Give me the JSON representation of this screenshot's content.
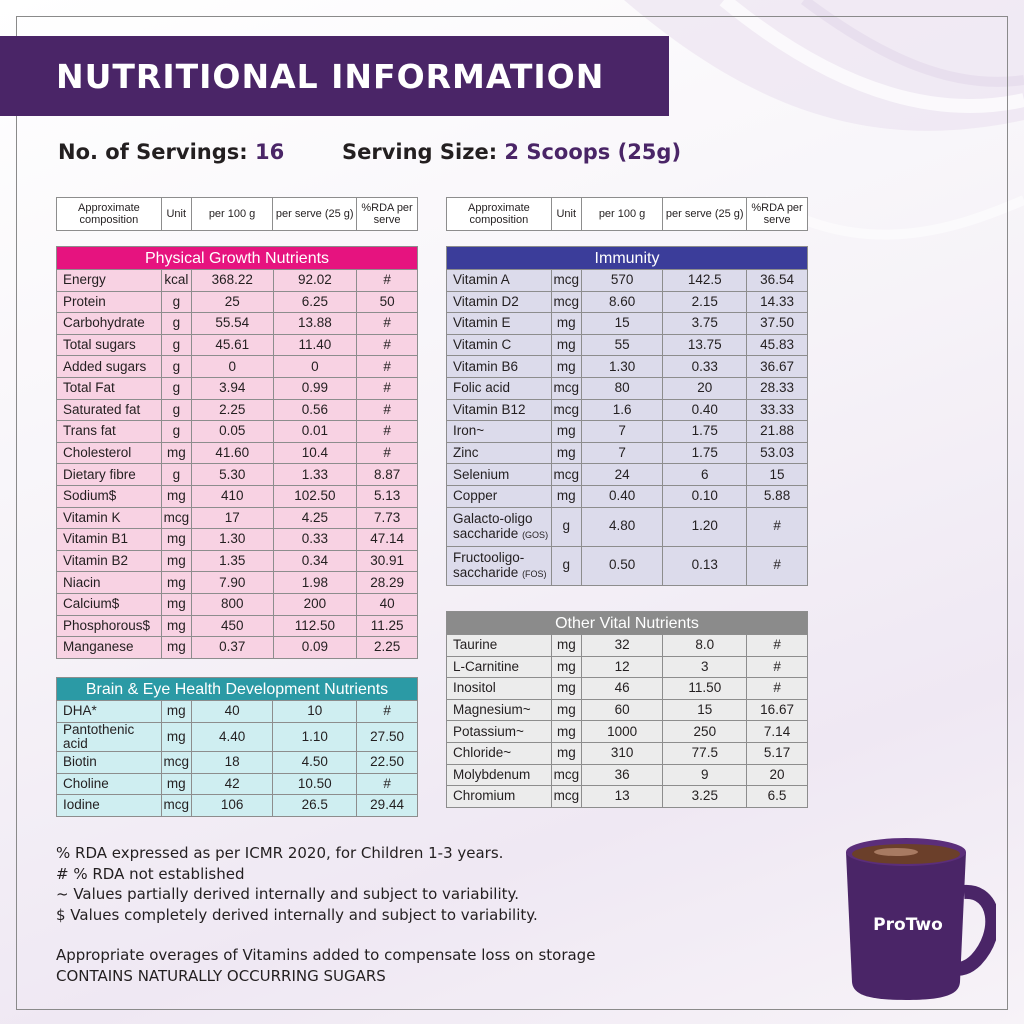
{
  "title": "NUTRITIONAL INFORMATION",
  "servings": {
    "label": "No. of Servings:",
    "value": "16"
  },
  "serving_size": {
    "label": "Serving Size:",
    "value": "2 Scoops (25g)"
  },
  "header": {
    "col1": "Approximate composition",
    "col2": "Unit",
    "col3": "per 100 g",
    "col4": "per serve (25 g)",
    "col5": "%RDA per serve"
  },
  "physical": {
    "title": "Physical Growth Nutrients",
    "rows": [
      [
        "Energy",
        "kcal",
        "368.22",
        "92.02",
        "#"
      ],
      [
        "Protein",
        "g",
        "25",
        "6.25",
        "50"
      ],
      [
        "Carbohydrate",
        "g",
        "55.54",
        "13.88",
        "#"
      ],
      [
        "Total sugars",
        "g",
        "45.61",
        "11.40",
        "#"
      ],
      [
        "Added sugars",
        "g",
        "0",
        "0",
        "#"
      ],
      [
        "Total Fat",
        "g",
        "3.94",
        "0.99",
        "#"
      ],
      [
        "Saturated fat",
        "g",
        "2.25",
        "0.56",
        "#"
      ],
      [
        "Trans fat",
        "g",
        "0.05",
        "0.01",
        "#"
      ],
      [
        "Cholesterol",
        "mg",
        "41.60",
        "10.4",
        "#"
      ],
      [
        "Dietary fibre",
        "g",
        "5.30",
        "1.33",
        "8.87"
      ],
      [
        "Sodium$",
        "mg",
        "410",
        "102.50",
        "5.13"
      ],
      [
        "Vitamin K",
        "mcg",
        "17",
        "4.25",
        "7.73"
      ],
      [
        "Vitamin B1",
        "mg",
        "1.30",
        "0.33",
        "47.14"
      ],
      [
        "Vitamin B2",
        "mg",
        "1.35",
        "0.34",
        "30.91"
      ],
      [
        "Niacin",
        "mg",
        "7.90",
        "1.98",
        "28.29"
      ],
      [
        "Calcium$",
        "mg",
        "800",
        "200",
        "40"
      ],
      [
        "Phosphorous$",
        "mg",
        "450",
        "112.50",
        "11.25"
      ],
      [
        "Manganese",
        "mg",
        "0.37",
        "0.09",
        "2.25"
      ]
    ]
  },
  "brain": {
    "title": "Brain & Eye Health Development Nutrients",
    "rows": [
      [
        "DHA*",
        "mg",
        "40",
        "10",
        "#"
      ],
      [
        "Pantothenic acid",
        "mg",
        "4.40",
        "1.10",
        "27.50"
      ],
      [
        "Biotin",
        "mcg",
        "18",
        "4.50",
        "22.50"
      ],
      [
        "Choline",
        "mg",
        "42",
        "10.50",
        "#"
      ],
      [
        "Iodine",
        "mcg",
        "106",
        "26.5",
        "29.44"
      ]
    ]
  },
  "immunity": {
    "title": "Immunity",
    "rows": [
      [
        "Vitamin A",
        "mcg",
        "570",
        "142.5",
        "36.54"
      ],
      [
        "Vitamin D2",
        "mcg",
        "8.60",
        "2.15",
        "14.33"
      ],
      [
        "Vitamin E",
        "mg",
        "15",
        "3.75",
        "37.50"
      ],
      [
        "Vitamin C",
        "mg",
        "55",
        "13.75",
        "45.83"
      ],
      [
        "Vitamin B6",
        "mg",
        "1.30",
        "0.33",
        "36.67"
      ],
      [
        "Folic acid",
        "mcg",
        "80",
        "20",
        "28.33"
      ],
      [
        "Vitamin B12",
        "mcg",
        "1.6",
        "0.40",
        "33.33"
      ],
      [
        "Iron~",
        "mg",
        "7",
        "1.75",
        "21.88"
      ],
      [
        "Zinc",
        "mg",
        "7",
        "1.75",
        "53.03"
      ],
      [
        "Selenium",
        "mcg",
        "24",
        "6",
        "15"
      ],
      [
        "Copper",
        "mg",
        "0.40",
        "0.10",
        "5.88"
      ]
    ],
    "gos": {
      "line1": "Galacto-oligo",
      "line2": "saccharide",
      "tag": "(GOS)",
      "unit": "g",
      "per100": "4.80",
      "perserve": "1.20",
      "rda": "#"
    },
    "fos": {
      "line1": "Fructooligo-",
      "line2": "saccharide",
      "tag": "(FOS)",
      "unit": "g",
      "per100": "0.50",
      "perserve": "0.13",
      "rda": "#"
    }
  },
  "other": {
    "title": "Other Vital Nutrients",
    "rows": [
      [
        "Taurine",
        "mg",
        "32",
        "8.0",
        "#"
      ],
      [
        "L-Carnitine",
        "mg",
        "12",
        "3",
        "#"
      ],
      [
        "Inositol",
        "mg",
        "46",
        "11.50",
        "#"
      ],
      [
        "Magnesium~",
        "mg",
        "60",
        "15",
        "16.67"
      ],
      [
        "Potassium~",
        "mg",
        "1000",
        "250",
        "7.14"
      ],
      [
        "Chloride~",
        "mg",
        "310",
        "77.5",
        "5.17"
      ],
      [
        "Molybdenum",
        "mcg",
        "36",
        "9",
        "20"
      ],
      [
        "Chromium",
        "mcg",
        "13",
        "3.25",
        "6.5"
      ]
    ]
  },
  "footer": [
    "% RDA expressed as per ICMR 2020, for Children 1-3 years.",
    "# % RDA not established",
    "~ Values partially derived internally and subject to variability.",
    "$ Values completely derived internally and subject to variability."
  ],
  "footer2": [
    "Appropriate overages of Vitamins added to compensate loss on storage",
    "CONTAINS NATURALLY OCCURRING SUGARS"
  ],
  "mug": {
    "brand": "ProTwo",
    "color": "#4a2567"
  }
}
